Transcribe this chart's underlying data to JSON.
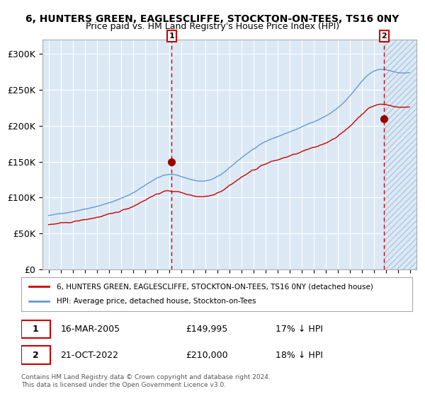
{
  "title": "6, HUNTERS GREEN, EAGLESCLIFFE, STOCKTON-ON-TEES, TS16 0NY",
  "subtitle": "Price paid vs. HM Land Registry's House Price Index (HPI)",
  "ylabel": "",
  "background_color": "#dce9f5",
  "hatch_color": "#b0c8e0",
  "legend_label_red": "6, HUNTERS GREEN, EAGLESCLIFFE, STOCKTON-ON-TEES, TS16 0NY (detached house)",
  "legend_label_blue": "HPI: Average price, detached house, Stockton-on-Tees",
  "sale1_date": "16-MAR-2005",
  "sale1_price": "£149,995",
  "sale1_hpi": "17% ↓ HPI",
  "sale2_date": "21-OCT-2022",
  "sale2_price": "£210,000",
  "sale2_hpi": "18% ↓ HPI",
  "footnote": "Contains HM Land Registry data © Crown copyright and database right 2024.\nThis data is licensed under the Open Government Licence v3.0.",
  "red_color": "#cc0000",
  "blue_color": "#6699cc",
  "dot_color": "#990000",
  "vline_color": "#cc0000",
  "sale1_x": 2005.21,
  "sale2_x": 2022.81,
  "ylim": [
    0,
    320000
  ],
  "xlim_start": 1994.5,
  "xlim_end": 2025.5,
  "hatch_start": 2022.81,
  "yticks": [
    0,
    50000,
    100000,
    150000,
    200000,
    250000,
    300000
  ],
  "ytick_labels": [
    "£0",
    "£50K",
    "£100K",
    "£150K",
    "£200K",
    "£250K",
    "£300K"
  ],
  "xticks": [
    1995,
    1996,
    1997,
    1998,
    1999,
    2000,
    2001,
    2002,
    2003,
    2004,
    2005,
    2006,
    2007,
    2008,
    2009,
    2010,
    2011,
    2012,
    2013,
    2014,
    2015,
    2016,
    2017,
    2018,
    2019,
    2020,
    2021,
    2022,
    2023,
    2024,
    2025
  ]
}
